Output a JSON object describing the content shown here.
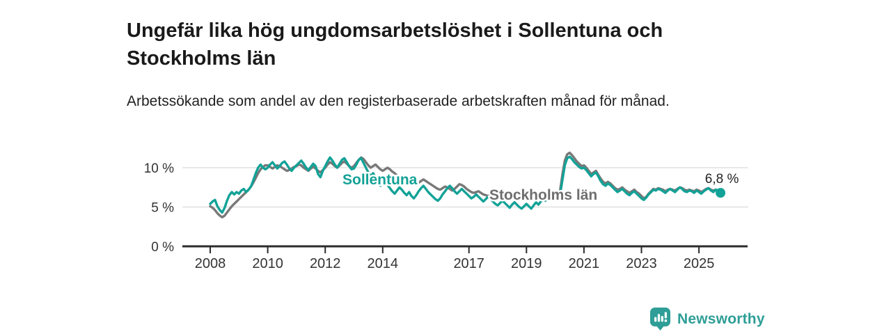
{
  "header": {
    "title": "Ungefär lika hög ungdomsarbetslöshet i Sollentuna och Stockholms län",
    "subtitle": "Arbetssökande som andel av den registerbaserade arbetskraften månad för månad."
  },
  "chart_data": {
    "type": "line",
    "title": "Ungefär lika hög ungdomsarbetslöshet i Sollentuna och Stockholms län",
    "subtitle": "Arbetssökande som andel av den registerbaserade arbetskraften månad för månad.",
    "x_unit": "month",
    "x_start": "2008-01",
    "x_end": "2025-10",
    "x_ticks": [
      {
        "year": 2008,
        "label": "2008"
      },
      {
        "year": 2010,
        "label": "2010"
      },
      {
        "year": 2012,
        "label": "2012"
      },
      {
        "year": 2014,
        "label": "2014"
      },
      {
        "year": 2017,
        "label": "2017"
      },
      {
        "year": 2019,
        "label": "2019"
      },
      {
        "year": 2021,
        "label": "2021"
      },
      {
        "year": 2023,
        "label": "2023"
      },
      {
        "year": 2025,
        "label": "2025"
      }
    ],
    "y_ticks": [
      {
        "value": 0,
        "label": "0 %"
      },
      {
        "value": 5,
        "label": "5 %"
      },
      {
        "value": 10,
        "label": "10 %"
      }
    ],
    "ylim": [
      0,
      12.5
    ],
    "grid": "horizontal",
    "legend_position": "inline-labels",
    "colors": {
      "sollentuna": "#13A297",
      "stockholms_lan": "#787878",
      "grid": "#e0e0e0",
      "axis": "#2b2b2b",
      "tick_text": "#333333",
      "annotation_text": "#222222",
      "stockholm_label": "#6E6E6E"
    },
    "end_label": "6,8 %",
    "end_value": 6.8,
    "series": [
      {
        "name": "Sollentuna",
        "values": [
          5.4,
          5.7,
          5.9,
          5.1,
          4.6,
          4.3,
          4.9,
          5.8,
          6.5,
          6.9,
          6.6,
          6.9,
          6.7,
          7.1,
          7.3,
          6.9,
          7.2,
          7.6,
          8.4,
          9.3,
          10.0,
          10.4,
          10.0,
          9.8,
          10.0,
          10.4,
          10.7,
          10.3,
          9.9,
          10.2,
          10.6,
          10.8,
          10.4,
          9.9,
          9.6,
          10.0,
          10.3,
          10.6,
          10.9,
          10.5,
          10.0,
          9.7,
          10.1,
          10.5,
          10.2,
          9.2,
          8.8,
          9.6,
          10.2,
          10.8,
          11.3,
          10.9,
          10.4,
          10.0,
          10.5,
          11.0,
          11.2,
          10.7,
          10.2,
          9.8,
          9.9,
          10.4,
          11.0,
          11.2,
          10.6,
          10.0,
          9.4,
          8.9,
          9.3,
          8.8,
          8.2,
          7.7,
          7.9,
          8.2,
          7.8,
          7.4,
          7.0,
          6.7,
          7.1,
          7.5,
          7.2,
          6.8,
          6.5,
          6.9,
          6.4,
          6.1,
          6.5,
          7.0,
          7.4,
          7.7,
          7.3,
          6.9,
          6.6,
          6.3,
          6.0,
          5.8,
          6.1,
          6.6,
          7.0,
          7.4,
          7.7,
          7.4,
          7.0,
          6.7,
          7.0,
          7.3,
          7.0,
          6.7,
          6.4,
          6.1,
          6.3,
          6.6,
          6.3,
          6.0,
          5.7,
          6.0,
          6.3,
          6.0,
          5.7,
          5.4,
          5.2,
          5.5,
          5.8,
          5.5,
          5.2,
          4.9,
          5.3,
          5.6,
          5.3,
          5.0,
          4.8,
          5.1,
          5.4,
          5.1,
          4.8,
          5.2,
          5.6,
          5.3,
          5.7,
          6.0,
          5.8,
          6.1,
          6.3,
          6.5,
          6.4,
          6.3,
          6.5,
          8.4,
          10.3,
          11.2,
          11.4,
          11.1,
          10.7,
          10.4,
          10.1,
          9.9,
          10.0,
          9.7,
          9.3,
          8.9,
          9.2,
          9.4,
          8.9,
          8.3,
          7.9,
          7.7,
          8.0,
          7.8,
          7.5,
          7.2,
          6.9,
          7.1,
          7.3,
          7.0,
          6.7,
          6.5,
          6.8,
          7.0,
          6.7,
          6.4,
          6.1,
          5.9,
          6.2,
          6.6,
          6.9,
          7.2,
          7.1,
          7.3,
          7.2,
          7.0,
          6.8,
          7.1,
          7.3,
          7.1,
          6.9,
          7.2,
          7.5,
          7.3,
          7.0,
          6.9,
          7.1,
          7.0,
          6.8,
          7.1,
          6.9,
          6.7,
          7.0,
          7.2,
          7.4,
          7.1,
          6.9,
          7.2,
          7.0,
          6.8
        ]
      },
      {
        "name": "Stockholms län",
        "values": [
          5.1,
          4.9,
          4.6,
          4.2,
          3.9,
          3.7,
          3.9,
          4.3,
          4.7,
          5.1,
          5.4,
          5.7,
          6.0,
          6.3,
          6.6,
          6.9,
          7.2,
          7.6,
          8.1,
          8.7,
          9.3,
          9.8,
          10.1,
          10.3,
          10.3,
          10.1,
          9.9,
          10.1,
          10.3,
          10.2,
          10.0,
          9.8,
          9.6,
          9.7,
          9.9,
          10.1,
          10.2,
          10.4,
          10.3,
          10.0,
          9.8,
          9.6,
          9.9,
          10.1,
          9.9,
          9.6,
          9.4,
          9.7,
          10.0,
          10.4,
          10.7,
          10.5,
          10.2,
          10.0,
          10.3,
          10.6,
          10.8,
          10.5,
          10.2,
          10.0,
          10.2,
          10.6,
          11.0,
          11.3,
          11.1,
          10.7,
          10.3,
          10.0,
          10.2,
          10.4,
          10.1,
          9.8,
          9.6,
          9.8,
          10.0,
          9.8,
          9.5,
          9.3,
          9.0,
          8.8,
          8.6,
          8.7,
          8.9,
          8.7,
          8.4,
          8.2,
          8.0,
          8.1,
          8.3,
          8.5,
          8.3,
          8.1,
          7.9,
          7.7,
          7.5,
          7.3,
          7.2,
          7.4,
          7.6,
          7.5,
          7.3,
          7.1,
          7.3,
          7.6,
          7.9,
          7.8,
          7.6,
          7.3,
          7.1,
          6.9,
          6.8,
          6.9,
          7.0,
          6.8,
          6.6,
          6.5,
          6.4,
          6.5,
          6.6,
          6.8,
          6.7,
          6.5,
          6.4,
          6.5,
          6.6,
          6.4,
          6.2,
          6.1,
          6.3,
          6.5,
          6.4,
          6.2,
          6.1,
          6.3,
          6.5,
          6.4,
          6.2,
          6.4,
          6.6,
          6.5,
          6.7,
          6.8,
          6.9,
          7.0,
          6.9,
          6.8,
          7.0,
          9.1,
          10.9,
          11.7,
          11.9,
          11.6,
          11.2,
          10.8,
          10.5,
          10.2,
          10.3,
          10.0,
          9.6,
          9.2,
          9.4,
          9.6,
          9.1,
          8.6,
          8.2,
          8.0,
          8.2,
          8.0,
          7.7,
          7.4,
          7.2,
          7.3,
          7.5,
          7.2,
          7.0,
          6.8,
          7.0,
          7.2,
          6.9,
          6.7,
          6.4,
          6.1,
          6.3,
          6.7,
          7.0,
          7.3,
          7.2,
          7.4,
          7.3,
          7.2,
          7.0,
          7.2,
          7.3,
          7.2,
          7.1,
          7.3,
          7.5,
          7.4,
          7.2,
          7.1,
          7.2,
          7.1,
          7.0,
          7.2,
          7.1,
          6.9,
          7.1,
          7.3,
          7.4,
          7.2,
          7.1,
          7.2,
          7.1,
          7.0
        ]
      }
    ]
  },
  "logo": {
    "text": "Newsworthy",
    "color": "#2E9E97"
  }
}
